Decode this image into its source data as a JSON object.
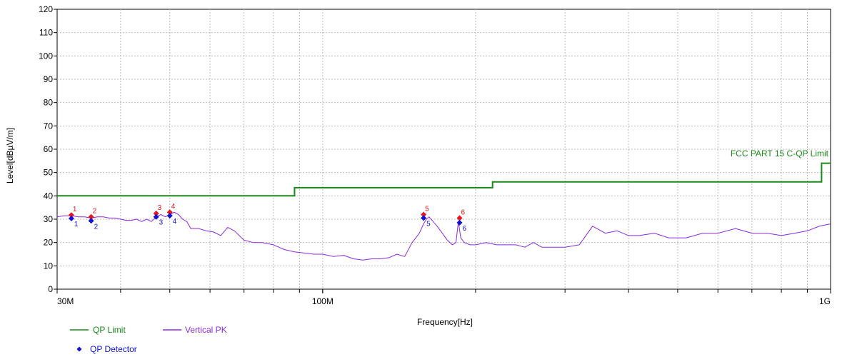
{
  "chart_data": {
    "type": "line",
    "xlabel": "Frequency[Hz]",
    "ylabel": "Level[dBµV/m]",
    "x_scale": "log",
    "xlim": [
      30000000,
      1000000000
    ],
    "ylim": [
      0,
      120
    ],
    "x_tick_labels": [
      {
        "value": 30000000,
        "label": "30M"
      },
      {
        "value": 100000000,
        "label": "100M"
      },
      {
        "value": 1000000000,
        "label": "1G"
      }
    ],
    "y_ticks": [
      0,
      10,
      20,
      30,
      40,
      50,
      60,
      70,
      80,
      90,
      100,
      110,
      120
    ],
    "grid": true,
    "legend_position": "bottom-left",
    "limit_annotation": "FCC PART 15 C-QP Limit",
    "series": [
      {
        "name": "QP Limit",
        "color": "#1a8a1a",
        "step": true,
        "x": [
          30000000,
          88000000,
          88000000,
          216000000,
          216000000,
          960000000,
          960000000,
          1000000000
        ],
        "y": [
          40,
          40,
          43.5,
          43.5,
          46,
          46,
          54,
          54
        ]
      },
      {
        "name": "Vertical PK",
        "color": "#8b2be2",
        "x": [
          30000000,
          31000000,
          32000000,
          33000000,
          34000000,
          35000000,
          36000000,
          37000000,
          38000000,
          39000000,
          40000000,
          41000000,
          42000000,
          43000000,
          44000000,
          45000000,
          46000000,
          47000000,
          48000000,
          49000000,
          50000000,
          51000000,
          52000000,
          53000000,
          54000000,
          55000000,
          57000000,
          59000000,
          61000000,
          63000000,
          65000000,
          67000000,
          70000000,
          73000000,
          76000000,
          80000000,
          84000000,
          88000000,
          92000000,
          96000000,
          100000000,
          105000000,
          110000000,
          115000000,
          120000000,
          125000000,
          130000000,
          135000000,
          140000000,
          145000000,
          150000000,
          155000000,
          158000000,
          160000000,
          162000000,
          165000000,
          168000000,
          172000000,
          176000000,
          180000000,
          183000000,
          185000000,
          187000000,
          190000000,
          195000000,
          200000000,
          210000000,
          220000000,
          230000000,
          240000000,
          250000000,
          260000000,
          270000000,
          280000000,
          300000000,
          320000000,
          340000000,
          360000000,
          380000000,
          400000000,
          420000000,
          450000000,
          480000000,
          520000000,
          560000000,
          600000000,
          650000000,
          700000000,
          750000000,
          800000000,
          850000000,
          900000000,
          950000000,
          1000000000
        ],
        "y": [
          31,
          31.5,
          31.5,
          31,
          31,
          30.5,
          31,
          31,
          30.5,
          30.5,
          30,
          29.5,
          29.5,
          30,
          29,
          30,
          29,
          31,
          32,
          31,
          32,
          33,
          32,
          30,
          29,
          26,
          26,
          25,
          24.5,
          23,
          26.5,
          25,
          21,
          20,
          20,
          19,
          17,
          16,
          15.5,
          15,
          15,
          14,
          14.5,
          13,
          12.5,
          13,
          13,
          13.5,
          15,
          14,
          20,
          24,
          28,
          30,
          31,
          29,
          27,
          24,
          21,
          19,
          20,
          29,
          22,
          20,
          19,
          19,
          20,
          19,
          19,
          19,
          18,
          20,
          18,
          18,
          18,
          19,
          27,
          24,
          25,
          23,
          23,
          24,
          22,
          22,
          24,
          24,
          26,
          24,
          24,
          23,
          24,
          25,
          27,
          28
        ]
      }
    ],
    "markers": [
      {
        "id": "1",
        "freq": 32000000,
        "pk": 31.8,
        "qp": 30.3
      },
      {
        "id": "2",
        "freq": 35000000,
        "pk": 31.0,
        "qp": 29.3
      },
      {
        "id": "3",
        "freq": 47000000,
        "pk": 32.5,
        "qp": 31.0
      },
      {
        "id": "4",
        "freq": 50000000,
        "pk": 33.0,
        "qp": 31.5
      },
      {
        "id": "5",
        "freq": 158000000,
        "pk": 32.0,
        "qp": 30.5
      },
      {
        "id": "6",
        "freq": 186000000,
        "pk": 30.5,
        "qp": 28.5
      }
    ],
    "marker_colors": {
      "pk": "#e8141e",
      "qp": "#1212d4"
    },
    "detector_legend": "QP Detector"
  }
}
